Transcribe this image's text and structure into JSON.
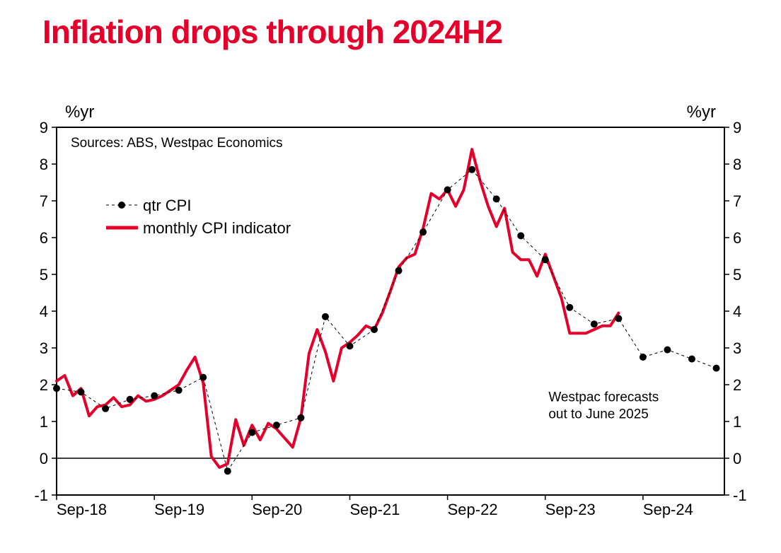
{
  "title": "Inflation drops through 2024H2",
  "title_color": "#e4002b",
  "title_fontsize": 46,
  "sources_text": "Sources: ABS, Westpac Economics",
  "sources_fontsize": 19,
  "note_line1": "Westpac forecasts",
  "note_line2": "out to June 2025",
  "note_fontsize": 19,
  "y_axis_label_left": "%yr",
  "y_axis_label_right": "%yr",
  "axis_label_fontsize": 24,
  "legend": {
    "series1": "qtr CPI",
    "series1_marker": "circle-dash",
    "series2": "monthly CPI indicator",
    "series2_marker": "thick-line",
    "fontsize": 22
  },
  "chart": {
    "type": "line+scatter",
    "background_color": "#ffffff",
    "plot_border_color": "#000000",
    "plot_border_width": 2,
    "zero_line_color": "#000000",
    "zero_line_width": 1.5,
    "ylim": [
      -1,
      9
    ],
    "ytick_step": 1,
    "yticks": [
      -1,
      0,
      1,
      2,
      3,
      4,
      5,
      6,
      7,
      8,
      9
    ],
    "tick_fontsize": 22,
    "x_start": 2018.667,
    "x_end": 2025.5,
    "xtick_positions": [
      2018.667,
      2019.667,
      2020.667,
      2021.667,
      2022.667,
      2023.667,
      2024.667
    ],
    "xtick_labels": [
      "Sep-18",
      "Sep-19",
      "Sep-20",
      "Sep-21",
      "Sep-22",
      "Sep-23",
      "Sep-24"
    ],
    "series_qtr": {
      "color": "#000000",
      "line_width": 1,
      "line_dash": "4,4",
      "marker": "circle",
      "marker_size": 5,
      "marker_fill": "#000000",
      "x": [
        2018.667,
        2018.917,
        2019.167,
        2019.417,
        2019.667,
        2019.917,
        2020.167,
        2020.417,
        2020.667,
        2020.917,
        2021.167,
        2021.417,
        2021.667,
        2021.917,
        2022.167,
        2022.417,
        2022.667,
        2022.917,
        2023.167,
        2023.417,
        2023.667,
        2023.917,
        2024.167,
        2024.417,
        2024.667,
        2024.917,
        2025.167,
        2025.417
      ],
      "y": [
        1.9,
        1.8,
        1.35,
        1.6,
        1.7,
        1.85,
        2.2,
        -0.35,
        0.7,
        0.9,
        1.1,
        3.85,
        3.05,
        3.5,
        5.1,
        6.15,
        7.3,
        7.85,
        7.05,
        6.05,
        5.4,
        4.1,
        3.65,
        3.8,
        2.75,
        2.95,
        2.7,
        2.45
      ]
    },
    "series_monthly": {
      "color": "#e4002b",
      "line_width": 4,
      "x": [
        2018.667,
        2018.75,
        2018.833,
        2018.917,
        2019.0,
        2019.083,
        2019.167,
        2019.25,
        2019.333,
        2019.417,
        2019.5,
        2019.583,
        2019.667,
        2019.75,
        2019.833,
        2019.917,
        2020.0,
        2020.083,
        2020.167,
        2020.25,
        2020.333,
        2020.417,
        2020.5,
        2020.583,
        2020.667,
        2020.75,
        2020.833,
        2020.917,
        2021.0,
        2021.083,
        2021.167,
        2021.25,
        2021.333,
        2021.417,
        2021.5,
        2021.583,
        2021.667,
        2021.75,
        2021.833,
        2021.917,
        2022.0,
        2022.083,
        2022.167,
        2022.25,
        2022.333,
        2022.417,
        2022.5,
        2022.583,
        2022.667,
        2022.75,
        2022.833,
        2022.917,
        2023.0,
        2023.083,
        2023.167,
        2023.25,
        2023.333,
        2023.417,
        2023.5,
        2023.583,
        2023.667,
        2023.75,
        2023.833,
        2023.917,
        2024.0,
        2024.083,
        2024.167,
        2024.25,
        2024.333,
        2024.417
      ],
      "y": [
        2.1,
        2.25,
        1.7,
        1.9,
        1.15,
        1.4,
        1.45,
        1.65,
        1.4,
        1.45,
        1.7,
        1.55,
        1.6,
        1.7,
        1.85,
        2.0,
        2.4,
        2.75,
        2.05,
        0.05,
        -0.25,
        -0.15,
        1.05,
        0.35,
        0.9,
        0.5,
        0.95,
        0.8,
        0.55,
        0.3,
        1.1,
        2.85,
        3.5,
        2.9,
        2.1,
        3.0,
        3.15,
        3.35,
        3.6,
        3.5,
        3.95,
        4.55,
        5.2,
        5.45,
        5.55,
        6.25,
        7.2,
        7.05,
        7.3,
        6.85,
        7.3,
        8.4,
        7.55,
        6.85,
        6.3,
        6.8,
        5.6,
        5.4,
        5.4,
        4.95,
        5.55,
        4.95,
        4.35,
        3.4,
        3.4,
        3.4,
        3.5,
        3.6,
        3.6,
        3.95
      ]
    }
  }
}
